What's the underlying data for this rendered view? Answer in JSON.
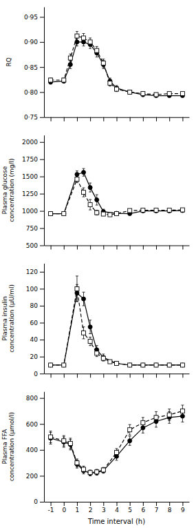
{
  "chart_data": [
    {
      "type": "line",
      "ylabel": "RQ",
      "xlim": [
        -1.5,
        9.5
      ],
      "xticks": [
        -1,
        0,
        1,
        2,
        3,
        4,
        5,
        6,
        7,
        8,
        9
      ],
      "ylim": [
        0.75,
        0.97
      ],
      "yticks": [
        {
          "value": 0.75,
          "label": "0·75"
        },
        {
          "value": 0.8,
          "label": "0·80"
        },
        {
          "value": 0.85,
          "label": "0·85"
        },
        {
          "value": 0.9,
          "label": "0·90"
        },
        {
          "value": 0.95,
          "label": "0·95"
        }
      ],
      "tick_labels": "y",
      "series": [
        {
          "line_style": "solid",
          "marker": "circle",
          "color": "#000000",
          "x": [
            -1,
            0,
            0.5,
            1,
            1.5,
            2,
            2.5,
            3,
            3.5,
            4,
            5,
            6,
            7,
            8,
            9
          ],
          "values": [
            0.82,
            0.822,
            0.855,
            0.9,
            0.9,
            0.895,
            0.878,
            0.855,
            0.822,
            0.808,
            0.8,
            0.795,
            0.793,
            0.793,
            0.793
          ],
          "errors": [
            0.004,
            0.004,
            0.008,
            0.008,
            0.008,
            0.008,
            0.008,
            0.008,
            0.006,
            0.005,
            0.004,
            0.004,
            0.003,
            0.003,
            0.003
          ]
        },
        {
          "line_style": "dashed",
          "marker": "open-square",
          "color": "#000000",
          "x": [
            -1,
            0,
            0.5,
            1,
            1.5,
            2,
            2.5,
            3,
            3.5,
            4,
            5,
            6,
            7,
            8,
            9
          ],
          "values": [
            0.824,
            0.824,
            0.868,
            0.912,
            0.908,
            0.9,
            0.883,
            0.858,
            0.818,
            0.806,
            0.8,
            0.797,
            0.795,
            0.797,
            0.797
          ],
          "errors": [
            0.004,
            0.004,
            0.008,
            0.009,
            0.009,
            0.008,
            0.008,
            0.008,
            0.006,
            0.005,
            0.004,
            0.004,
            0.003,
            0.003,
            0.003
          ]
        }
      ]
    },
    {
      "type": "line",
      "ylabel": "Plasma glucose concentration (mg/l)",
      "xlim": [
        -1.5,
        9.5
      ],
      "xticks": [
        -1,
        0,
        1,
        2,
        3,
        4,
        5,
        6,
        7,
        8,
        9
      ],
      "ylim": [
        500,
        2100
      ],
      "yticks": [
        500,
        750,
        1000,
        1250,
        1500,
        1750,
        2000
      ],
      "tick_labels": "y",
      "series": [
        {
          "line_style": "solid",
          "marker": "circle",
          "color": "#000000",
          "x": [
            -1,
            0,
            1,
            1.5,
            2,
            2.5,
            3,
            4,
            5,
            6,
            7,
            8,
            9
          ],
          "values": [
            960,
            960,
            1530,
            1560,
            1340,
            1160,
            990,
            965,
            960,
            1000,
            1000,
            1000,
            1005
          ],
          "errors": [
            20,
            20,
            50,
            55,
            65,
            75,
            35,
            20,
            20,
            20,
            20,
            20,
            20
          ]
        },
        {
          "line_style": "dashed",
          "marker": "open-square",
          "color": "#000000",
          "x": [
            -1,
            0,
            1,
            1.5,
            2,
            2.5,
            3,
            3.5,
            4,
            5,
            6,
            7,
            8,
            9
          ],
          "values": [
            960,
            960,
            1460,
            1270,
            1090,
            975,
            955,
            945,
            960,
            1005,
            1010,
            1010,
            1010,
            1015
          ],
          "errors": [
            20,
            20,
            50,
            65,
            75,
            35,
            25,
            20,
            20,
            20,
            20,
            20,
            20,
            20
          ]
        }
      ]
    },
    {
      "type": "line",
      "ylabel": "Plasma insulin concentration (μU/ml)",
      "xlim": [
        -1.5,
        9.5
      ],
      "xticks": [
        -1,
        0,
        1,
        2,
        3,
        4,
        5,
        6,
        7,
        8,
        9
      ],
      "ylim": [
        0,
        130
      ],
      "yticks": [
        0,
        20,
        40,
        60,
        80,
        100,
        120
      ],
      "tick_labels": "y",
      "series": [
        {
          "line_style": "solid",
          "marker": "circle",
          "color": "#000000",
          "x": [
            -1,
            0,
            1,
            1.5,
            2,
            2.5,
            3,
            4,
            5,
            6,
            7,
            8,
            9
          ],
          "values": [
            10,
            10,
            95,
            88,
            55,
            28,
            19,
            12,
            10,
            10,
            10,
            10,
            10
          ],
          "errors": [
            2,
            2,
            10,
            8,
            8,
            5,
            4,
            2,
            2,
            2,
            2,
            2,
            2
          ]
        },
        {
          "line_style": "dashed",
          "marker": "open-square",
          "color": "#000000",
          "x": [
            -1,
            0,
            1,
            1.5,
            2,
            2.5,
            3,
            3.5,
            4,
            5,
            6,
            7,
            8,
            9
          ],
          "values": [
            10,
            10,
            100,
            48,
            38,
            24,
            18,
            14,
            12,
            10,
            10,
            10,
            10,
            10
          ],
          "errors": [
            2,
            2,
            15,
            7,
            5,
            4,
            3,
            2,
            2,
            2,
            2,
            2,
            2,
            2
          ]
        }
      ]
    },
    {
      "type": "line",
      "ylabel": "Plasma FFA concentration (μmol/l)",
      "xlabel": "Time interval (h)",
      "xlim": [
        -1.5,
        9.5
      ],
      "xticks": [
        -1,
        0,
        1,
        2,
        3,
        4,
        5,
        6,
        7,
        8,
        9
      ],
      "ylim": [
        0,
        850
      ],
      "yticks": [
        0,
        200,
        400,
        600,
        800
      ],
      "series": [
        {
          "line_style": "solid",
          "marker": "circle",
          "color": "#000000",
          "x": [
            -1,
            0,
            0.5,
            1,
            1.5,
            2,
            2.5,
            3,
            4,
            5,
            6,
            7,
            8,
            9
          ],
          "values": [
            490,
            460,
            440,
            290,
            240,
            220,
            225,
            240,
            350,
            470,
            570,
            620,
            650,
            660
          ],
          "errors": [
            45,
            40,
            40,
            30,
            25,
            20,
            20,
            20,
            30,
            35,
            40,
            45,
            45,
            45
          ]
        },
        {
          "line_style": "dashed",
          "marker": "open-square",
          "color": "#000000",
          "x": [
            -1,
            0,
            0.5,
            1,
            1.5,
            2,
            2.5,
            3,
            4,
            5,
            6,
            7,
            8,
            9
          ],
          "values": [
            500,
            470,
            450,
            300,
            250,
            225,
            230,
            245,
            380,
            555,
            610,
            650,
            670,
            700
          ],
          "errors": [
            45,
            40,
            40,
            30,
            25,
            20,
            20,
            20,
            30,
            40,
            40,
            45,
            45,
            45
          ]
        }
      ]
    }
  ]
}
